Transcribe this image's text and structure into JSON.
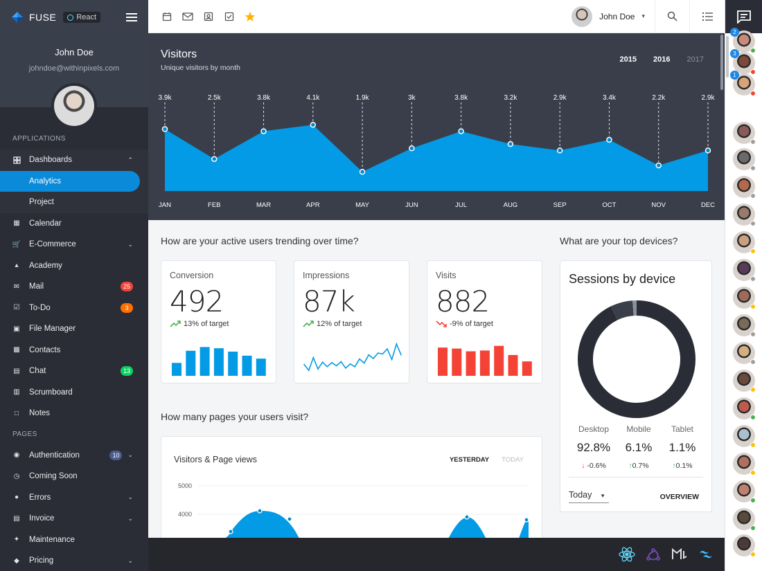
{
  "app": {
    "name": "FUSE",
    "framework_badge": "React"
  },
  "user": {
    "name": "John Doe",
    "email": "johndoe@withinpixels.com"
  },
  "nav": {
    "section_applications": "APPLICATIONS",
    "section_pages": "PAGES",
    "items": [
      {
        "label": "Dashboards",
        "icon": "dashboard-icon",
        "expanded": true
      },
      {
        "label": "Analytics",
        "active": true
      },
      {
        "label": "Project"
      },
      {
        "label": "Calendar",
        "icon": "calendar-icon"
      },
      {
        "label": "E-Commerce",
        "icon": "cart-icon"
      },
      {
        "label": "Academy",
        "icon": "school-icon"
      },
      {
        "label": "Mail",
        "icon": "mail-icon",
        "badge": "25",
        "badge_color": "#f44336"
      },
      {
        "label": "To-Do",
        "icon": "check-box-icon",
        "badge": "3",
        "badge_color": "#ff6f00"
      },
      {
        "label": "File Manager",
        "icon": "folder-icon"
      },
      {
        "label": "Contacts",
        "icon": "contacts-icon"
      },
      {
        "label": "Chat",
        "icon": "chat-icon",
        "badge": "13",
        "badge_color": "#09d261"
      },
      {
        "label": "Scrumboard",
        "icon": "board-icon"
      },
      {
        "label": "Notes",
        "icon": "note-icon"
      },
      {
        "label": "Authentication",
        "icon": "lock-icon",
        "badge": "10",
        "badge_color": "#4a5b8c"
      },
      {
        "label": "Coming Soon",
        "icon": "alarm-icon"
      },
      {
        "label": "Errors",
        "icon": "error-icon"
      },
      {
        "label": "Invoice",
        "icon": "receipt-icon"
      },
      {
        "label": "Maintenance",
        "icon": "build-icon"
      },
      {
        "label": "Pricing",
        "icon": "price-icon"
      }
    ]
  },
  "visitors": {
    "title": "Visitors",
    "subtitle": "Unique visitors by month",
    "years": [
      "2015",
      "2016",
      "2017"
    ],
    "active_year": "2016"
  },
  "chart_data": [
    {
      "type": "area",
      "title": "Visitors",
      "subtitle": "Unique visitors by month",
      "categories": [
        "JAN",
        "FEB",
        "MAR",
        "APR",
        "MAY",
        "JUN",
        "JUL",
        "AUG",
        "SEP",
        "OCT",
        "NOV",
        "DEC"
      ],
      "values": [
        3900,
        2500,
        3800,
        4100,
        1900,
        3000,
        3800,
        3200,
        2900,
        3400,
        2200,
        2900
      ],
      "data_labels": [
        "3.9k",
        "2.5k",
        "3.8k",
        "4.1k",
        "1.9k",
        "3k",
        "3.8k",
        "3.2k",
        "2.9k",
        "3.4k",
        "2.2k",
        "2.9k"
      ],
      "color": "#039be5",
      "grid": false
    },
    {
      "type": "bar",
      "title": "Conversion",
      "values": [
        221,
        428,
        492,
        471,
        413,
        344,
        294
      ],
      "color": "#039be5"
    },
    {
      "type": "line",
      "title": "Impressions",
      "values": [
        67000,
        54000,
        82000,
        57000,
        72000,
        62000,
        71000,
        64000,
        73000,
        59000,
        68000,
        62000,
        79000,
        70000,
        88000,
        80000,
        92000,
        90000,
        101000,
        78000,
        112000,
        88000
      ],
      "color": "#039be5"
    },
    {
      "type": "bar",
      "title": "Visits",
      "values": [
        882,
        850,
        765,
        790,
        935,
        650,
        450
      ],
      "color": "#f44336"
    },
    {
      "type": "pie",
      "title": "Sessions by device",
      "categories": [
        "Desktop",
        "Mobile",
        "Tablet"
      ],
      "values": [
        92.8,
        6.1,
        1.1
      ],
      "colors": [
        "#2a2d35",
        "#3b3f4a",
        "#8a8f9c"
      ]
    },
    {
      "type": "area",
      "title": "Visitors & Page views",
      "y_ticks": [
        "5000",
        "4000"
      ],
      "color": "#039be5"
    }
  ],
  "questions": {
    "active_users": "How are your active users trending over time?",
    "top_devices": "What are your top devices?",
    "pages_visit": "How many pages your users visit?"
  },
  "stats": [
    {
      "title": "Conversion",
      "value": "492",
      "trend": "13% of target",
      "direction": "up"
    },
    {
      "title": "Impressions",
      "value": "87k",
      "trend": "12% of target",
      "direction": "up"
    },
    {
      "title": "Visits",
      "value": "882",
      "trend": "-9% of target",
      "direction": "down"
    }
  ],
  "sessions": {
    "title": "Sessions by device",
    "devices": [
      {
        "name": "Desktop",
        "value": "92.8%",
        "change": "-0.6%",
        "direction": "down"
      },
      {
        "name": "Mobile",
        "value": "6.1%",
        "change": "0.7%",
        "direction": "up"
      },
      {
        "name": "Tablet",
        "value": "1.1%",
        "change": "0.1%",
        "direction": "up"
      }
    ],
    "period": "Today",
    "overview_label": "OVERVIEW"
  },
  "pageviews": {
    "title": "Visitors & Page views",
    "tabs": [
      "YESTERDAY",
      "TODAY"
    ],
    "y_ticks": [
      "5000",
      "4000"
    ]
  },
  "contacts": [
    {
      "unread": "2",
      "status": "#4caf50",
      "tone": "#c98a7a"
    },
    {
      "unread": "3",
      "status": "#f44336",
      "tone": "#7a4a3a"
    },
    {
      "unread": "1",
      "status": "#f44336",
      "tone": "#d9a27a"
    },
    {
      "status": "#9e9e9e",
      "tone": "#8a5a5a"
    },
    {
      "status": "#9e9e9e",
      "tone": "#6a6a6a"
    },
    {
      "status": "#9e9e9e",
      "tone": "#b46a4a"
    },
    {
      "status": "#9e9e9e",
      "tone": "#9a7a6a"
    },
    {
      "status": "#ffc107",
      "tone": "#c9a080"
    },
    {
      "status": "#9e9e9e",
      "tone": "#5a3a5a"
    },
    {
      "status": "#ffc107",
      "tone": "#a06a5a"
    },
    {
      "status": "#9e9e9e",
      "tone": "#7a6a5a"
    },
    {
      "status": "#9e9e9e",
      "tone": "#d4b080"
    },
    {
      "status": "#ffc107",
      "tone": "#6a4a3a"
    },
    {
      "status": "#4caf50",
      "tone": "#c05a4a"
    },
    {
      "status": "#ffc107",
      "tone": "#aac0d0"
    },
    {
      "status": "#ffc107",
      "tone": "#b07060"
    },
    {
      "status": "#4caf50",
      "tone": "#c08070"
    },
    {
      "status": "#4caf50",
      "tone": "#5a4a3a"
    },
    {
      "status": "#ffc107",
      "tone": "#4a3a3a"
    }
  ],
  "footer_logos": [
    "react-logo-icon",
    "redux-logo-icon",
    "material-ui-logo-icon",
    "tailwind-logo-icon"
  ]
}
